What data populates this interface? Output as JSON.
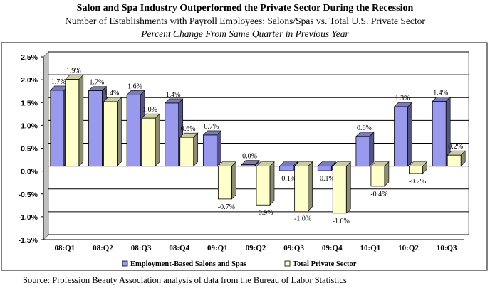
{
  "header": {
    "title": "Salon and Spa Industry Outperformed the Private Sector During the Recession",
    "subtitle": "Number of Establishments with Payroll Employees: Salons/Spas vs. Total U.S. Private Sector",
    "subtitle2": "Percent Change From Same Quarter in Previous Year"
  },
  "footer": {
    "source": "Source: Profession Beauty Association analysis of data from the Bureau of Labor Statistics"
  },
  "colors": {
    "salons": "#9999ee",
    "private": "#ffffcc",
    "plot_bg": "#ffffff",
    "frame_bg": "#c0c0c0"
  },
  "chart_data": {
    "type": "bar",
    "title": "Salon and Spa Industry Outperformed the Private Sector During the Recession",
    "categories": [
      "08:Q1",
      "08:Q2",
      "08:Q3",
      "08:Q4",
      "09:Q1",
      "09:Q2",
      "09:Q3",
      "09:Q4",
      "10:Q1",
      "10:Q2",
      "10:Q3"
    ],
    "series": [
      {
        "name": "Employment-Based Salons and Spas",
        "values": [
          1.7,
          1.7,
          1.6,
          1.4,
          0.7,
          0.0,
          -0.1,
          -0.1,
          0.6,
          1.3,
          1.4
        ],
        "plot_values": [
          1.66,
          1.65,
          1.56,
          1.38,
          0.68,
          0.03,
          -0.1,
          -0.1,
          0.65,
          1.3,
          1.42
        ],
        "labels": [
          "1.7%",
          "1.7%",
          "1.6%",
          "1.4%",
          "0.7%",
          "0.0%",
          "-0.1%",
          "-0.1%",
          "0.6%",
          "1.3%",
          "1.4%"
        ]
      },
      {
        "name": "Total Private Sector",
        "values": [
          1.9,
          1.4,
          1.0,
          0.6,
          -0.7,
          -0.9,
          -1.0,
          -1.0,
          -0.4,
          -0.2,
          0.2
        ],
        "plot_values": [
          1.9,
          1.41,
          1.05,
          0.63,
          -0.72,
          -0.85,
          -0.98,
          -1.03,
          -0.44,
          -0.16,
          0.24
        ],
        "labels": [
          "1.9%",
          "1.4%",
          "1.0%",
          "0.6%",
          "-0.7%",
          "-0.9%",
          "-1.0%",
          "-1.0%",
          "-0.4%",
          "-0.2%",
          "0.2%"
        ]
      }
    ],
    "ylim": [
      -1.5,
      2.5
    ],
    "yticks": [
      2.5,
      2.0,
      1.5,
      1.0,
      0.5,
      0.0,
      -0.5,
      -1.0,
      -1.5
    ],
    "ytick_labels": [
      "2.5%",
      "2.0%",
      "1.5%",
      "1.0%",
      "0.5%",
      "0.0%",
      "-0.5%",
      "-1.0%",
      "-1.5%"
    ],
    "grid": true,
    "legend": "bottom",
    "xlabel": "",
    "ylabel": ""
  }
}
